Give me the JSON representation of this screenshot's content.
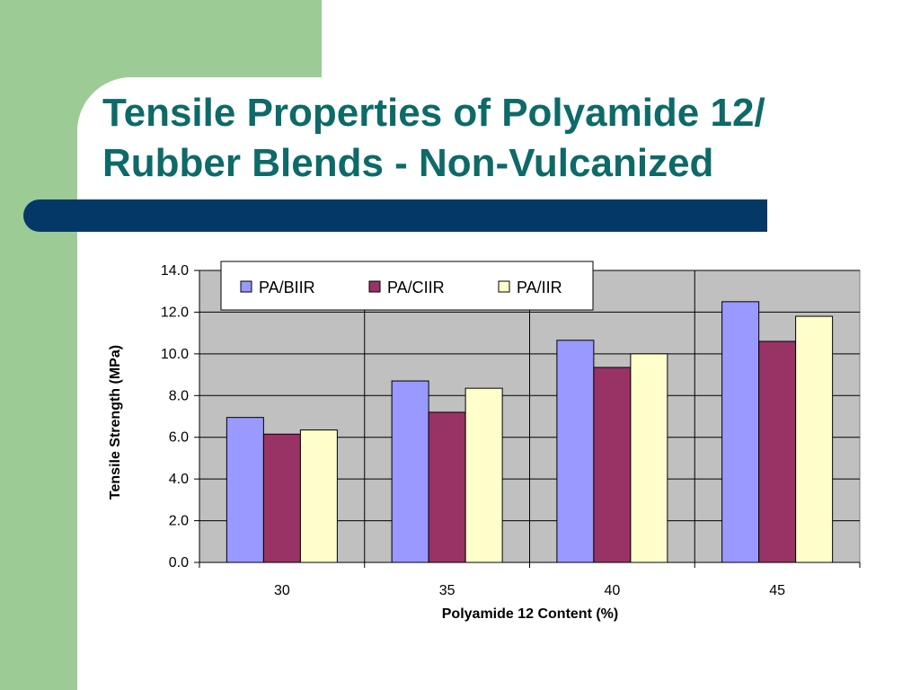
{
  "slide": {
    "title_line1": "Tensile Properties of Polyamide 12/",
    "title_line2": "Rubber Blends -  Non-Vulcanized"
  },
  "colors": {
    "green_panel": "#9ccb96",
    "title_text": "#0d6a68",
    "title_bar": "#043867",
    "plot_background": "#c0c0c0"
  },
  "chart_data": {
    "type": "bar",
    "title": "",
    "xlabel": "Polyamide 12 Content (%)",
    "ylabel": "Tensile Strength (MPa)",
    "categories": [
      "30",
      "35",
      "40",
      "45"
    ],
    "ylim": [
      0,
      14
    ],
    "yticks": [
      "0.0",
      "2.0",
      "4.0",
      "6.0",
      "8.0",
      "10.0",
      "12.0",
      "14.0"
    ],
    "grid": true,
    "legend_position": "top-left",
    "series": [
      {
        "name": "PA/BIIR",
        "color": "#9999ff",
        "values": [
          6.95,
          8.7,
          10.65,
          12.5
        ]
      },
      {
        "name": "PA/CIIR",
        "color": "#993366",
        "values": [
          6.15,
          7.2,
          9.35,
          10.6
        ]
      },
      {
        "name": "PA/IIR",
        "color": "#ffffcc",
        "values": [
          6.35,
          8.35,
          10.0,
          11.8
        ]
      }
    ]
  }
}
